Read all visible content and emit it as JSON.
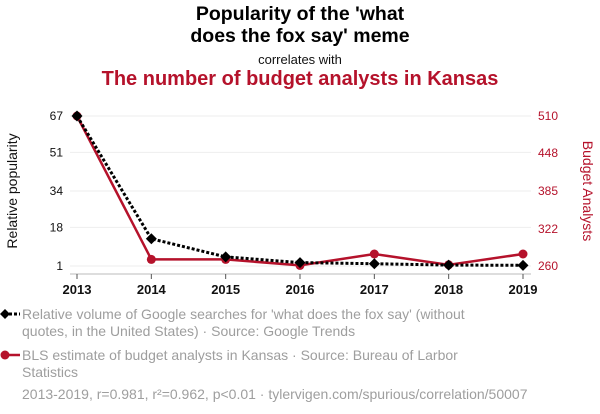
{
  "chart_data": {
    "type": "line",
    "title": "Popularity of the 'what does the fox say' meme",
    "title_lines": [
      "Popularity of the 'what",
      "does the fox say' meme"
    ],
    "subtitle": "correlates with",
    "title2": "The number of budget analysts in Kansas",
    "x": [
      "2013",
      "2014",
      "2015",
      "2016",
      "2017",
      "2018",
      "2019"
    ],
    "series": [
      {
        "name": "Relative volume of Google searches for 'what does the fox say' (without quotes, in the United States) · Source: Google Trends",
        "axis": "left",
        "color": "#000000",
        "style": "dotted",
        "marker": "diamond",
        "values": [
          67,
          13,
          5,
          2.5,
          2,
          1.4,
          1.3
        ]
      },
      {
        "name": "BLS estimate of budget analysts in Kansas · Source: Bureau of Larbor Statistics",
        "axis": "right",
        "color": "#b5122b",
        "style": "solid",
        "marker": "circle",
        "values": [
          510,
          271,
          271,
          261,
          280,
          262,
          280
        ]
      }
    ],
    "ylabel": "Relative popularity",
    "ylabel_right": "Budget Analysts",
    "yticks": [
      "67",
      "51",
      "34",
      "18",
      "1"
    ],
    "ytick_values": [
      67,
      51,
      34,
      18,
      1
    ],
    "yticks_right": [
      "510",
      "448",
      "385",
      "322",
      "260"
    ],
    "ytick_right_values": [
      510,
      448,
      385,
      322,
      260
    ],
    "ylim": [
      1,
      67
    ],
    "ylim_right": [
      260,
      510
    ],
    "grid": true,
    "legend_position": "bottom",
    "footer": "2013-2019, r=0.981, r²=0.962, p<0.01 · tylervigen.com/spurious/correlation/50007",
    "legend_entries": [
      [
        "Relative volume of Google searches for 'what does the fox say' (without",
        "quotes, in the United States) · Source: Google Trends"
      ],
      [
        "BLS estimate of budget analysts in Kansas · Source: Bureau of Larbor",
        "Statistics"
      ]
    ],
    "accent_color": "#b5122b"
  }
}
